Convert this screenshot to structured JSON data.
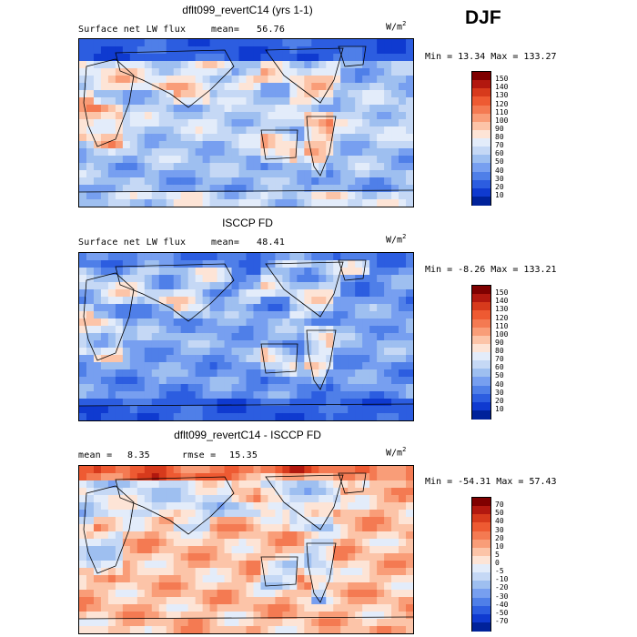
{
  "season": "DJF",
  "chart_data": [
    {
      "type": "heatmap",
      "title": "dflt099_revertC14 (yrs 1-1)",
      "variable": "Surface net LW flux",
      "mean_label": "mean=",
      "mean": "56.76",
      "units": "W/m",
      "units_exp": "2",
      "min_label": "Min =",
      "min": "13.34",
      "max_label": "Max =",
      "max": "133.27",
      "colorbar": {
        "levels": [
          "150",
          "140",
          "130",
          "120",
          "110",
          "100",
          "90",
          "80",
          "70",
          "60",
          "50",
          "40",
          "30",
          "20",
          "10"
        ],
        "colors": [
          "#7f0000",
          "#b2180f",
          "#d73a1c",
          "#ee5a32",
          "#f47a52",
          "#f99d78",
          "#fcc4a8",
          "#fde4d6",
          "#e3ecfa",
          "#c5d8f5",
          "#9ebff0",
          "#779ff0",
          "#4f7fe8",
          "#2c5de0",
          "#0f3ad0",
          "#00229a"
        ]
      },
      "pattern": "model"
    },
    {
      "type": "heatmap",
      "title": "ISCCP FD",
      "variable": "Surface net LW flux",
      "mean_label": "mean=",
      "mean": "48.41",
      "units": "W/m",
      "units_exp": "2",
      "min_label": "Min =",
      "min": "-8.26",
      "max_label": "Max =",
      "max": "133.21",
      "colorbar": {
        "levels": [
          "150",
          "140",
          "130",
          "120",
          "110",
          "100",
          "90",
          "80",
          "70",
          "60",
          "50",
          "40",
          "30",
          "20",
          "10"
        ],
        "colors": [
          "#7f0000",
          "#b2180f",
          "#d73a1c",
          "#ee5a32",
          "#f47a52",
          "#f99d78",
          "#fcc4a8",
          "#fde4d6",
          "#e3ecfa",
          "#c5d8f5",
          "#9ebff0",
          "#779ff0",
          "#4f7fe8",
          "#2c5de0",
          "#0f3ad0",
          "#00229a"
        ]
      },
      "pattern": "obs"
    },
    {
      "type": "heatmap",
      "title": "dflt099_revertC14 - ISCCP FD",
      "mean_label": "mean =",
      "mean": "8.35",
      "rmse_label": "rmse =",
      "rmse": "15.35",
      "units": "W/m",
      "units_exp": "2",
      "min_label": "Min =",
      "min": "-54.31",
      "max_label": "Max =",
      "max": "57.43",
      "colorbar": {
        "levels": [
          "70",
          "50",
          "40",
          "30",
          "20",
          "10",
          "5",
          "0",
          "-5",
          "-10",
          "-20",
          "-30",
          "-40",
          "-50",
          "-70"
        ],
        "colors": [
          "#7f0000",
          "#b2180f",
          "#d73a1c",
          "#ee5a32",
          "#f47a52",
          "#f99d78",
          "#fcc4a8",
          "#fde4d6",
          "#e3ecfa",
          "#c5d8f5",
          "#9ebff0",
          "#779ff0",
          "#4f7fe8",
          "#2c5de0",
          "#0f3ad0",
          "#00229a"
        ]
      },
      "pattern": "diff"
    }
  ]
}
